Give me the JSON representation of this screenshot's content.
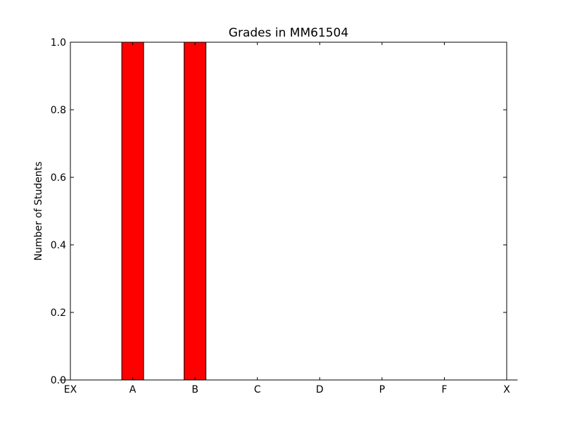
{
  "chart_data": {
    "type": "bar",
    "title": "Grades in MM61504",
    "xlabel": "",
    "ylabel": "Number of Students",
    "categories": [
      "EX",
      "A",
      "B",
      "C",
      "D",
      "P",
      "F",
      "X"
    ],
    "values": [
      0,
      1,
      1,
      0,
      0,
      0,
      0,
      0
    ],
    "ylim": [
      0,
      1.0
    ],
    "yticks": [
      "0.0",
      "0.2",
      "0.4",
      "0.6",
      "0.8",
      "1.0"
    ],
    "grid": false,
    "colors": {
      "bar_fill": "#ff0000",
      "bar_edge": "#000000",
      "axes": "#000000",
      "background": "#ffffff"
    }
  }
}
